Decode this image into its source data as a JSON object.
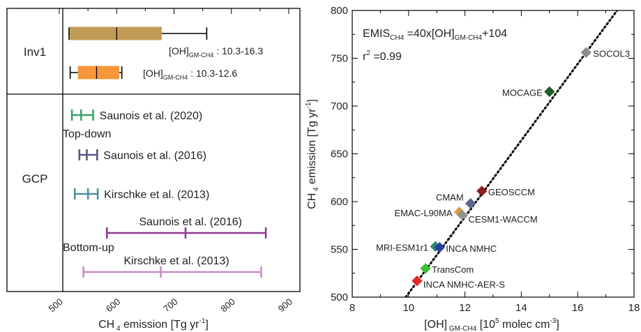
{
  "chart_data": [
    {
      "type": "range",
      "xlabel": "CH 4 emission [Tg yr⁻¹]",
      "xticks": [
        500,
        600,
        700,
        800,
        900
      ],
      "xlim": [
        470,
        905
      ],
      "groups": [
        {
          "name": "Inv1",
          "bands": [
            0,
            1
          ]
        },
        {
          "name": "GCP",
          "bands": [
            2,
            3,
            4,
            5,
            6,
            7,
            8
          ]
        }
      ],
      "rows": [
        {
          "style": "box",
          "color": "#C19A55",
          "whisker_low": 517,
          "box_low": 519,
          "median": 600,
          "box_high": 678,
          "whisker_high": 757,
          "label": "[OH]GM-CH4 : 10.3-16.3",
          "row_y": 0.0
        },
        {
          "style": "box",
          "color": "#F7963A",
          "whisker_low": 519,
          "box_low": 533,
          "median": 565,
          "box_high": 604,
          "whisker_high": 609,
          "label": "[OH]GM-CH4 : 10.3-12.6",
          "row_y": 1.0
        },
        {
          "style": "whisker",
          "color": "#3BA26B",
          "low": 522,
          "mid": 538,
          "high": 559,
          "label": "Saunois et al. (2020)",
          "row_y": 2.2
        },
        {
          "style": "whisker",
          "color": "#575A7E",
          "low": 535,
          "mid": 548,
          "high": 566,
          "label": "Saunois et al. (2016)",
          "row_y": 3.7
        },
        {
          "style": "whisker",
          "color": "#4E8E9E",
          "low": 527,
          "mid": 550,
          "high": 567,
          "label": "Kirschke et al. (2013)",
          "row_y": 5.2
        },
        {
          "style": "whisker",
          "color": "#8E3A96",
          "low": 583,
          "mid": 720,
          "high": 860,
          "label": "Saunois et al. (2016)",
          "row_y": 6.65
        },
        {
          "style": "whisker",
          "color": "#C98BC4",
          "low": 542,
          "mid": 677,
          "high": 852,
          "label": "Kirschke et al. (2013)",
          "row_y": 8.1
        }
      ],
      "annotations": [
        "Top-down",
        "Bottom-up"
      ]
    },
    {
      "type": "scatter",
      "xlabel": "[OH]",
      "xlabel_sub": "GM-CH4",
      "xlabel_tail": "[10⁵ molec cm⁻³]",
      "ylabel": "CH 4 emission [Tg yr⁻¹]",
      "xlim": [
        8,
        18
      ],
      "ylim": [
        500,
        800
      ],
      "xticks": [
        8,
        10,
        12,
        14,
        16,
        18
      ],
      "yticks": [
        500,
        550,
        600,
        650,
        700,
        750,
        800
      ],
      "equation": "EMISCH4 =40x[OH]GM-CH4 +104",
      "r2": "r2 =0.99",
      "fit": {
        "slope": 40,
        "intercept": 104
      },
      "points": [
        {
          "name": "SOCOL3",
          "x": 16.3,
          "y": 756,
          "color": "#8C8C8C",
          "label_color": "#9A9A9A",
          "label_side": "right"
        },
        {
          "name": "MOCAGE",
          "x": 15.0,
          "y": 715,
          "color": "#1E5E2A",
          "label_color": "#1E5E2A",
          "label_side": "left"
        },
        {
          "name": "GEOSCCM",
          "x": 12.6,
          "y": 611,
          "color": "#8B1E1E",
          "label_color": "#8B1E1E",
          "label_side": "right"
        },
        {
          "name": "CMAM",
          "x": 12.2,
          "y": 598,
          "color": "#5E6690",
          "label_color": "#5E6690",
          "label_side": "left"
        },
        {
          "name": "EMAC-L90MA",
          "x": 11.8,
          "y": 589,
          "color": "#E09A3A",
          "label_color": "#E08A2A",
          "label_side": "left"
        },
        {
          "name": "CESM1-WACCM",
          "x": 11.9,
          "y": 586,
          "color": "#8A9A88",
          "label_color": "#8A9A88",
          "label_side": "right"
        },
        {
          "name": "MRI-ESM1r1",
          "x": 10.95,
          "y": 553,
          "color": "#2E8A6E",
          "label_color": "#2E8A6E",
          "label_side": "left"
        },
        {
          "name": "INCA NMHC",
          "x": 11.1,
          "y": 552,
          "color": "#2A3E9A",
          "label_color": "#2A3E9A",
          "label_side": "right"
        },
        {
          "name": "TransCom",
          "x": 10.6,
          "y": 530,
          "color": "#3DBE3D",
          "label_color": "#3DBE3D",
          "label_side": "right"
        },
        {
          "name": "INCA NMHC-AER-S",
          "x": 10.3,
          "y": 517,
          "color": "#E02828",
          "label_color": "#E02828",
          "label_side": "right"
        }
      ]
    }
  ]
}
